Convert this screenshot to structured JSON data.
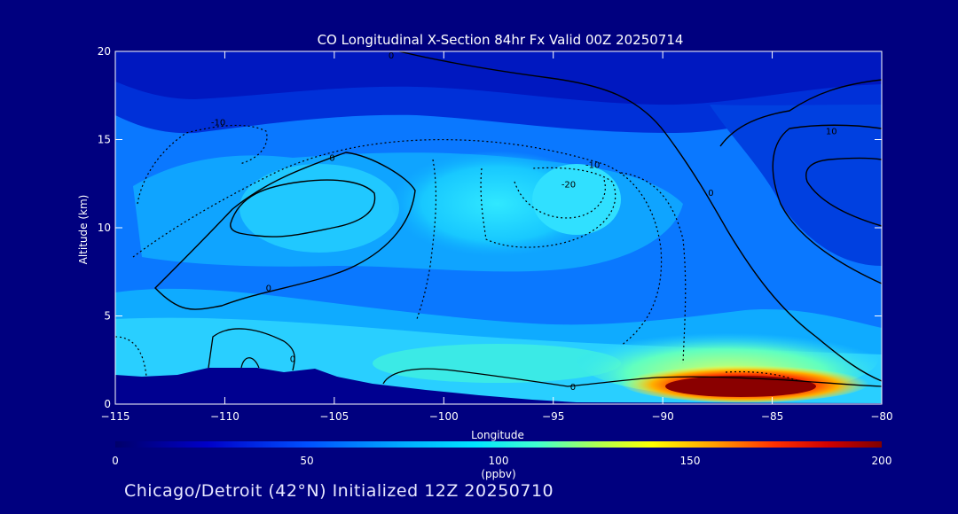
{
  "chart_data": {
    "type": "heatmap",
    "title": "CO Longitudinal X-Section 84hr  Fx Valid 00Z 20250714",
    "xlabel": "Longitude",
    "ylabel": "Altitude (km)",
    "xlim": [
      -115,
      -80
    ],
    "ylim": [
      0,
      20
    ],
    "x_ticks": [
      -115,
      -110,
      -105,
      -100,
      -95,
      -90,
      -85,
      -80
    ],
    "x_tick_labels": [
      "−115",
      "−110",
      "−105",
      "−100",
      "−95",
      "−90",
      "−85",
      "−80"
    ],
    "y_ticks": [
      0,
      5,
      10,
      15,
      20
    ],
    "y_tick_labels": [
      "0",
      "5",
      "10",
      "15",
      "20"
    ],
    "colorbar": {
      "min": 0,
      "max": 200,
      "ticks": [
        0,
        50,
        100,
        150,
        200
      ],
      "tick_labels": [
        "0",
        "50",
        "100",
        "150",
        "200"
      ],
      "units": "(ppbv)"
    },
    "field_features": [
      {
        "desc": "high CO boundary layer plume",
        "lon": [
          -93,
          -81
        ],
        "alt": [
          0.2,
          2.0
        ],
        "peak_ppbv": 195
      },
      {
        "desc": "enhanced CO mid troposphere",
        "lon": [
          -101,
          -90
        ],
        "alt": [
          9,
          14
        ],
        "value_ppbv": 80
      },
      {
        "desc": "low CO upper troposphere",
        "lon": [
          -115,
          -80
        ],
        "alt": [
          17,
          20
        ],
        "value_ppbv": 25
      }
    ],
    "contour_labels": [
      {
        "text": "-10",
        "lon": -110.3,
        "alt": 16.0
      },
      {
        "text": "0",
        "lon": -105.1,
        "alt": 14.0
      },
      {
        "text": "0",
        "lon": -108.0,
        "alt": 6.6
      },
      {
        "text": "0",
        "lon": -106.9,
        "alt": 2.6
      },
      {
        "text": "0",
        "lon": -94.1,
        "alt": 1.0
      },
      {
        "text": "0",
        "lon": -102.4,
        "alt": 19.8
      },
      {
        "text": "-10",
        "lon": -93.2,
        "alt": 13.6
      },
      {
        "text": "-20",
        "lon": -94.3,
        "alt": 12.5
      },
      {
        "text": "0",
        "lon": -87.8,
        "alt": 12.0
      },
      {
        "text": "10",
        "lon": -82.3,
        "alt": 15.5
      }
    ]
  },
  "footer": {
    "location": "Chicago/Detroit (42°N) Initialized 12Z 20250710"
  },
  "colors": {
    "background": "#00007f",
    "terrain": "#000090",
    "contour": "#000000"
  }
}
